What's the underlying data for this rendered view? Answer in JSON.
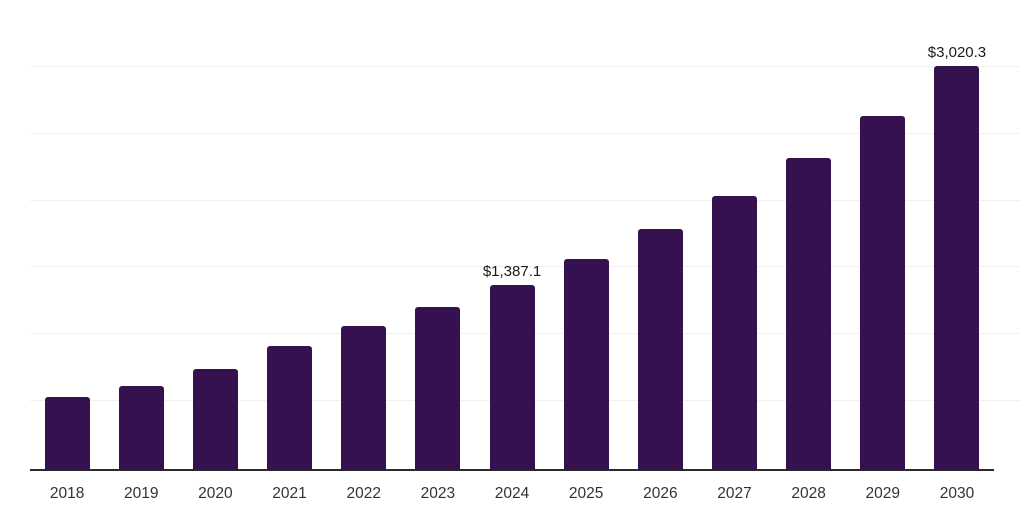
{
  "chart_data": {
    "type": "bar",
    "title": "",
    "xlabel": "",
    "ylabel": "",
    "categories": [
      "2018",
      "2019",
      "2020",
      "2021",
      "2022",
      "2023",
      "2024",
      "2025",
      "2026",
      "2027",
      "2028",
      "2029",
      "2030"
    ],
    "values": [
      545,
      630,
      755,
      930,
      1075,
      1220,
      1387.1,
      1575,
      1800,
      2050,
      2330,
      2650,
      3020.3
    ],
    "data_labels": {
      "2024": "$1,387.1",
      "2030": "$3,020.3"
    },
    "ylim": [
      0,
      3500
    ],
    "gridline_step": 500,
    "grid": true,
    "legend": false,
    "bar_color": "#351150",
    "axis_color": "#2b2b2b",
    "gridline_color": "#f0f0f0",
    "value_label_color": "#1a1a1a",
    "tick_label_color": "#333333"
  }
}
